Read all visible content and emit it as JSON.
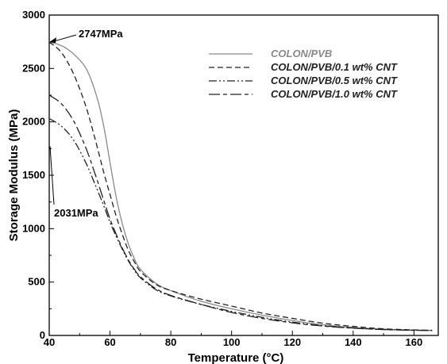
{
  "chart_data": {
    "type": "line",
    "xlabel": "Temperature (°C)",
    "ylabel": "Storage Modulus (MPa)",
    "xlim": [
      40,
      168
    ],
    "ylim": [
      0,
      3000
    ],
    "x_ticks": [
      40,
      60,
      80,
      100,
      120,
      140,
      160
    ],
    "y_ticks": [
      0,
      500,
      1000,
      1500,
      2000,
      2500,
      3000
    ],
    "legend_position": "top-right",
    "grid": false,
    "series": [
      {
        "name": "COLON/PVB",
        "color": "#8a8a8a",
        "dash": "solid",
        "x": [
          40,
          45,
          50,
          53,
          56,
          58,
          60,
          62,
          64,
          66,
          68,
          70,
          75,
          80,
          90,
          100,
          110,
          120,
          130,
          140,
          150,
          160,
          166
        ],
        "y": [
          2750,
          2700,
          2580,
          2450,
          2200,
          1950,
          1620,
          1300,
          1050,
          860,
          720,
          620,
          490,
          420,
          320,
          250,
          190,
          140,
          100,
          75,
          58,
          50,
          48
        ]
      },
      {
        "name": "COLON/PVB/0.1 wt% CNT",
        "color": "#222222",
        "dash": "dashed",
        "x": [
          40,
          44,
          48,
          52,
          55,
          58,
          60,
          62,
          64,
          66,
          68,
          70,
          75,
          80,
          90,
          100,
          110,
          120,
          130,
          140,
          150,
          160,
          166
        ],
        "y": [
          2747,
          2650,
          2450,
          2150,
          1850,
          1520,
          1320,
          1120,
          950,
          800,
          690,
          600,
          480,
          420,
          340,
          275,
          210,
          160,
          115,
          85,
          62,
          52,
          48
        ]
      },
      {
        "name": "COLON/PVB/0.5 wt% CNT",
        "color": "#222222",
        "dash": "dashdotdot",
        "x": [
          40,
          44,
          48,
          52,
          55,
          58,
          60,
          62,
          64,
          66,
          68,
          70,
          75,
          80,
          90,
          100,
          110,
          120,
          130,
          140,
          150,
          160,
          166
        ],
        "y": [
          2031,
          1960,
          1830,
          1620,
          1420,
          1210,
          1060,
          930,
          810,
          700,
          610,
          540,
          430,
          370,
          290,
          225,
          170,
          125,
          92,
          70,
          56,
          49,
          47
        ]
      },
      {
        "name": "COLON/PVB/1.0 wt% CNT",
        "color": "#222222",
        "dash": "longdash",
        "x": [
          40,
          44,
          48,
          52,
          55,
          58,
          60,
          62,
          64,
          66,
          68,
          70,
          75,
          80,
          90,
          100,
          110,
          120,
          130,
          140,
          150,
          160,
          166
        ],
        "y": [
          2250,
          2170,
          2010,
          1760,
          1520,
          1260,
          1090,
          950,
          820,
          710,
          620,
          550,
          440,
          375,
          290,
          215,
          160,
          118,
          88,
          68,
          55,
          48,
          46
        ]
      }
    ],
    "annotations": [
      {
        "text": "2747MPa",
        "x": 40,
        "y": 2747
      },
      {
        "text": "2031MPa",
        "x": 40,
        "y": 2031
      }
    ]
  }
}
